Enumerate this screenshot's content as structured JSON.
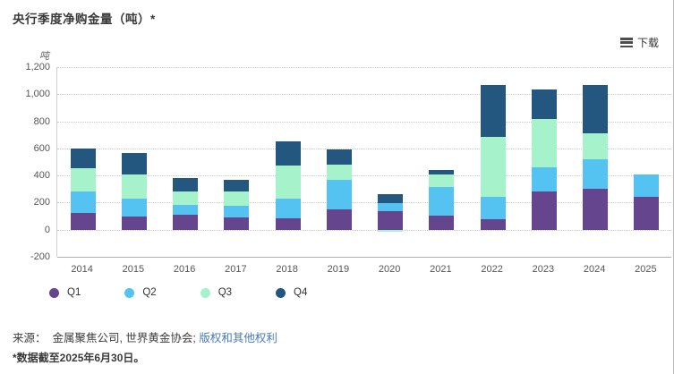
{
  "header": {
    "title": "央行季度净购金量（吨）*"
  },
  "toolbar": {
    "download_label": "下载"
  },
  "chart_data": {
    "type": "bar",
    "stacked": true,
    "title": "央行季度净购金量（吨）*",
    "unit_label": "吨",
    "categories": [
      "2014",
      "2015",
      "2016",
      "2017",
      "2018",
      "2019",
      "2020",
      "2021",
      "2022",
      "2023",
      "2024",
      "2025"
    ],
    "series": [
      {
        "name": "Q1",
        "color": "#64458e",
        "values": [
          125,
          100,
          110,
          90,
          85,
          150,
          135,
          105,
          80,
          285,
          305,
          245
        ]
      },
      {
        "name": "Q2",
        "color": "#54c3f1",
        "values": [
          155,
          130,
          75,
          85,
          145,
          215,
          60,
          210,
          160,
          175,
          215,
          165
        ]
      },
      {
        "name": "Q3",
        "color": "#a5f2cb",
        "values": [
          175,
          180,
          95,
          105,
          245,
          115,
          -15,
          95,
          445,
          360,
          190,
          null
        ]
      },
      {
        "name": "Q4",
        "color": "#24577f",
        "values": [
          145,
          155,
          100,
          90,
          175,
          115,
          65,
          30,
          380,
          215,
          360,
          null
        ]
      }
    ],
    "ylim": [
      -200,
      1200
    ],
    "yticks": [
      1200,
      1000,
      800,
      600,
      400,
      200,
      0,
      -200
    ],
    "grid": "horizontal dotted",
    "legend_position": "bottom"
  },
  "footer": {
    "source_prefix": "来源：  金属聚焦公司, 世界黄金协会; ",
    "source_link": "版权和其他权利",
    "footnote": "*数据截至2025年6月30日。"
  }
}
